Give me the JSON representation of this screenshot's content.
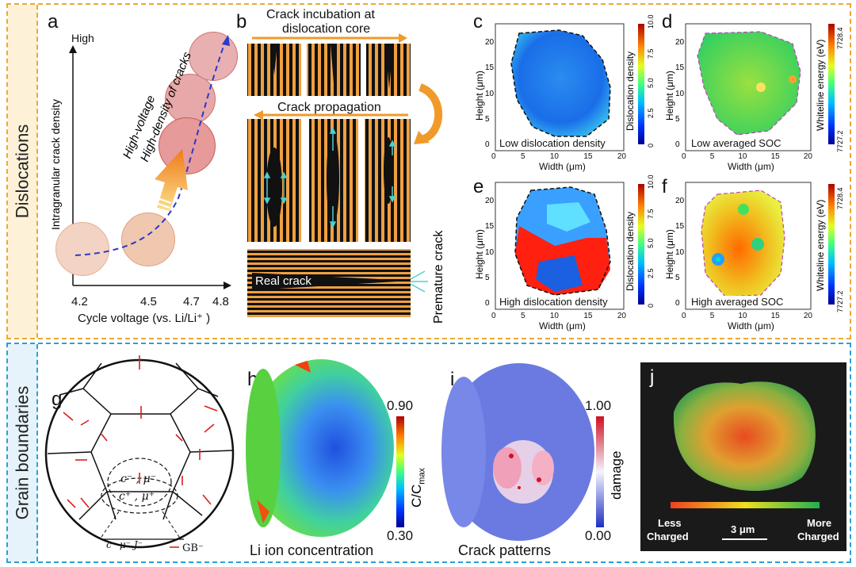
{
  "sections": {
    "dislocations": "Dislocations",
    "grain_boundaries": "Grain boundaries"
  },
  "colors": {
    "top_border": "#f0a830",
    "bottom_border": "#2aa0d8",
    "side_top": "#fdf2d8",
    "side_bottom": "#e6f3fa",
    "arrow_orange": "#f09a2a",
    "fringe_orange": "#f0a040",
    "circle_pink": "#e8aeb0",
    "circle_peach": "#f2d2bc",
    "dashed_blue": "#2a3acb"
  },
  "panel_a": {
    "label": "a",
    "ylabel": "Intragranular crack density",
    "high": "High",
    "xlabel": "Cycle voltage (vs. Li/Li⁺ )",
    "ticks": [
      "4.2",
      "4.5",
      "4.7",
      "4.8"
    ],
    "line1": "High-voltage",
    "line2": "High-density of cracks"
  },
  "panel_b": {
    "label": "b",
    "title1": "Crack incubation at",
    "title2": "dislocation core",
    "title3": "Crack propagation",
    "real_crack": "Real crack",
    "premature": "Premature crack"
  },
  "panel_c": {
    "label": "c",
    "caption": "Low dislocation density",
    "xlabel": "Width (μm)",
    "ylabel": "Height (μm)",
    "cbar": "Dislocation density",
    "cticks": [
      "10.0",
      "7.5",
      "5.0",
      "2.5",
      "0"
    ]
  },
  "panel_d": {
    "label": "d",
    "caption": "Low averaged SOC",
    "xlabel": "Width (μm)",
    "ylabel": "Height (μm)",
    "cbar": "Whiteline energy (eV)",
    "cticks": [
      "7728.4",
      "7727.2"
    ]
  },
  "panel_e": {
    "label": "e",
    "caption": "High dislocation density",
    "xlabel": "Width (μm)",
    "ylabel": "Height (μm)",
    "cbar": "Dislocation density",
    "cticks": [
      "10.0",
      "7.5",
      "5.0",
      "2.5",
      "0"
    ]
  },
  "panel_f": {
    "label": "f",
    "caption": "High averaged SOC",
    "xlabel": "Width (μm)",
    "ylabel": "Height (μm)",
    "cbar": "Whiteline energy (eV)",
    "cticks": [
      "7728.4",
      "7727.2"
    ]
  },
  "map_axes": {
    "xticks": [
      "0",
      "5",
      "10",
      "15",
      "20"
    ],
    "yticks": [
      "20",
      "15",
      "10",
      "5",
      "0"
    ]
  },
  "panel_g": {
    "label": "g",
    "cmu_minus": "c⁻ , μ⁻",
    "cmu_plus": "c⁺ , μ⁺",
    "bottom": "c⁻  μ⁻   J⁻",
    "gb": "GB⁻"
  },
  "panel_h": {
    "label": "h",
    "caption": "Li ion concentration",
    "cmax": "0.90",
    "cmin": "0.30",
    "cbar": "C/C"
  },
  "panel_i": {
    "label": "i",
    "caption": "Crack patterns",
    "dmax": "1.00",
    "dmin": "0.00",
    "cbar": "damage"
  },
  "panel_j": {
    "label": "j",
    "less": "Less",
    "less2": "Charged",
    "scale": "3 μm",
    "more": "More",
    "more2": "Charged"
  }
}
